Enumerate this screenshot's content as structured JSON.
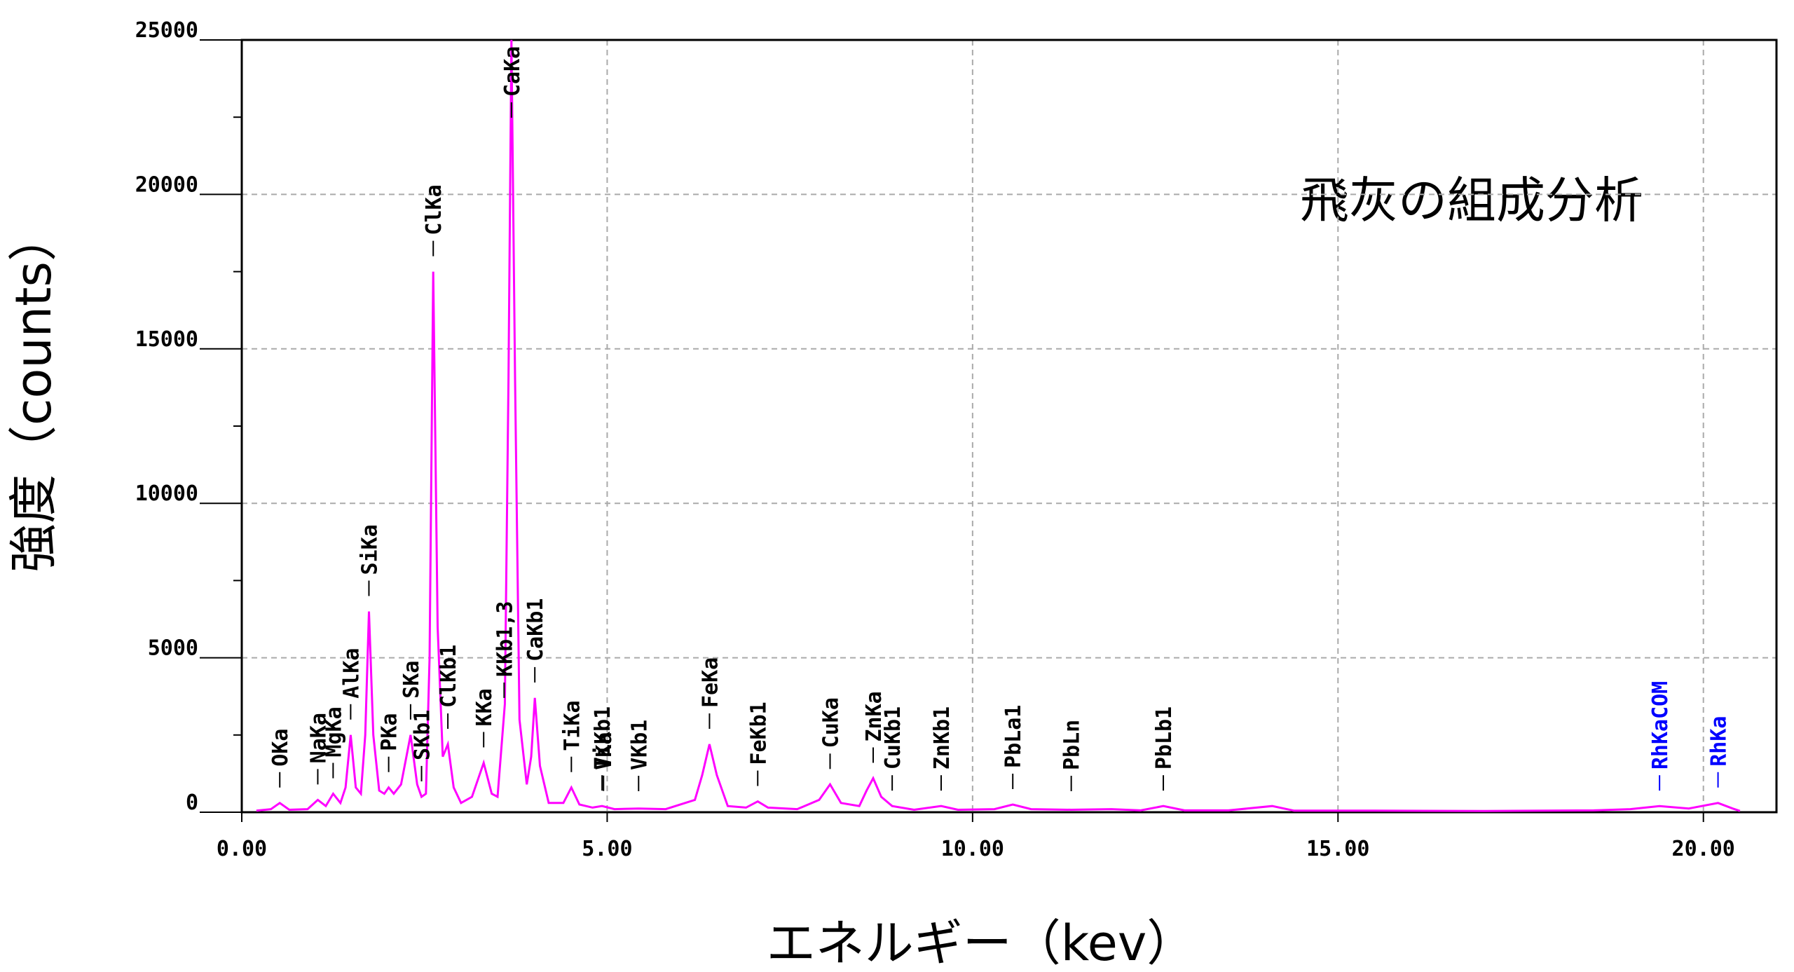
{
  "chart_data": {
    "type": "line",
    "annotation": "飛灰の組成分析",
    "xlabel": "エネルギー（kev）",
    "ylabel": "強度（counts）",
    "xlim": [
      0,
      21
    ],
    "ylim": [
      0,
      25000
    ],
    "xticks": [
      {
        "value": 0,
        "label": "0.00"
      },
      {
        "value": 5,
        "label": "5.00"
      },
      {
        "value": 10,
        "label": "10.00"
      },
      {
        "value": 15,
        "label": "15.00"
      },
      {
        "value": 20,
        "label": "20.00"
      }
    ],
    "yticks": [
      0,
      5000,
      10000,
      15000,
      20000,
      25000
    ],
    "yminorticks": [
      2500,
      7500,
      12500,
      17500,
      22500
    ],
    "grid": true,
    "x": [
      0.2,
      0.4,
      0.52,
      0.65,
      0.9,
      1.04,
      1.15,
      1.25,
      1.35,
      1.42,
      1.49,
      1.56,
      1.63,
      1.69,
      1.74,
      1.8,
      1.88,
      1.95,
      2.01,
      2.08,
      2.18,
      2.31,
      2.4,
      2.46,
      2.52,
      2.57,
      2.62,
      2.68,
      2.75,
      2.82,
      2.9,
      3.0,
      3.15,
      3.31,
      3.42,
      3.5,
      3.6,
      3.65,
      3.69,
      3.74,
      3.8,
      3.9,
      3.96,
      4.01,
      4.08,
      4.2,
      4.4,
      4.51,
      4.62,
      4.8,
      4.93,
      5.1,
      5.43,
      5.8,
      6.2,
      6.3,
      6.4,
      6.5,
      6.65,
      6.9,
      7.06,
      7.2,
      7.6,
      7.9,
      8.05,
      8.2,
      8.45,
      8.55,
      8.64,
      8.75,
      8.9,
      9.2,
      9.57,
      9.8,
      10.3,
      10.55,
      10.8,
      11.35,
      11.9,
      12.3,
      12.61,
      12.9,
      13.5,
      14.1,
      14.4,
      15.5,
      17,
      18.5,
      19.0,
      19.4,
      19.8,
      20.2,
      20.4,
      20.5
    ],
    "series": [
      {
        "color": "#ff00ff",
        "values": [
          50,
          100,
          300,
          80,
          100,
          400,
          200,
          600,
          300,
          800,
          2500,
          800,
          600,
          2500,
          6500,
          2500,
          700,
          600,
          800,
          600,
          900,
          2500,
          900,
          500,
          600,
          5000,
          17500,
          6000,
          1800,
          2200,
          800,
          300,
          500,
          1600,
          600,
          500,
          3500,
          14000,
          25000,
          14000,
          3000,
          900,
          1800,
          3700,
          1500,
          300,
          300,
          800,
          250,
          150,
          200,
          100,
          120,
          100,
          400,
          1200,
          2200,
          1200,
          200,
          150,
          350,
          150,
          100,
          400,
          900,
          300,
          200,
          700,
          1100,
          500,
          200,
          80,
          200,
          80,
          100,
          250,
          100,
          80,
          100,
          60,
          200,
          60,
          60,
          200,
          50,
          50,
          40,
          60,
          100,
          200,
          120,
          300,
          120,
          40
        ]
      }
    ],
    "peaks": [
      {
        "label": "OKa",
        "x": 0.52,
        "color": "#000000"
      },
      {
        "label": "NaKa",
        "x": 1.04,
        "color": "#000000"
      },
      {
        "label": "MgKa",
        "x": 1.25,
        "color": "#000000"
      },
      {
        "label": "AlKa",
        "x": 1.49,
        "color": "#000000"
      },
      {
        "label": "SiKa",
        "x": 1.74,
        "color": "#000000"
      },
      {
        "label": "PKa",
        "x": 2.01,
        "color": "#000000"
      },
      {
        "label": "SKa",
        "x": 2.31,
        "color": "#000000"
      },
      {
        "label": "SKb1",
        "x": 2.46,
        "color": "#000000"
      },
      {
        "label": "ClKa",
        "x": 2.62,
        "color": "#000000"
      },
      {
        "label": "ClKb1",
        "x": 2.82,
        "color": "#000000"
      },
      {
        "label": "KKa",
        "x": 3.31,
        "color": "#000000"
      },
      {
        "label": "KKb1,3",
        "x": 3.59,
        "color": "#000000"
      },
      {
        "label": "CaKa",
        "x": 3.69,
        "color": "#000000"
      },
      {
        "label": "CaKb1",
        "x": 4.01,
        "color": "#000000"
      },
      {
        "label": "TiKa",
        "x": 4.51,
        "color": "#000000"
      },
      {
        "label": "TiKb1",
        "x": 4.93,
        "color": "#000000"
      },
      {
        "label": "VKa",
        "x": 4.95,
        "color": "#000000"
      },
      {
        "label": "VKb1",
        "x": 5.43,
        "color": "#000000"
      },
      {
        "label": "FeKa",
        "x": 6.4,
        "color": "#000000"
      },
      {
        "label": "FeKb1",
        "x": 7.06,
        "color": "#000000"
      },
      {
        "label": "CuKa",
        "x": 8.05,
        "color": "#000000"
      },
      {
        "label": "ZnKa",
        "x": 8.64,
        "color": "#000000"
      },
      {
        "label": "CuKb1",
        "x": 8.9,
        "color": "#000000"
      },
      {
        "label": "ZnKb1",
        "x": 9.57,
        "color": "#000000"
      },
      {
        "label": "PbLa1",
        "x": 10.55,
        "color": "#000000"
      },
      {
        "label": "PbLn",
        "x": 11.35,
        "color": "#000000"
      },
      {
        "label": "PbLb1",
        "x": 12.61,
        "color": "#000000"
      },
      {
        "label": "RhKaCOM",
        "x": 19.4,
        "color": "#0000ff"
      },
      {
        "label": "RhKa",
        "x": 20.2,
        "color": "#0000ff"
      }
    ]
  }
}
